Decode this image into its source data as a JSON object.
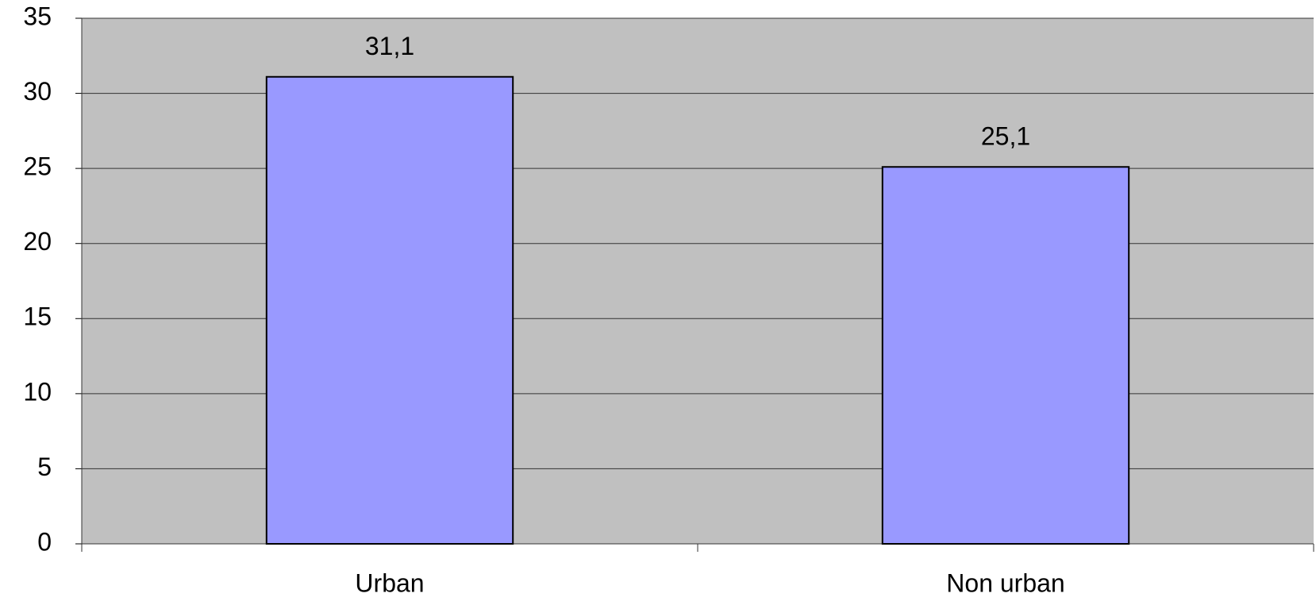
{
  "chart_data": {
    "type": "bar",
    "categories": [
      "Urban",
      "Non urban"
    ],
    "values": [
      31.1,
      25.1
    ],
    "value_labels": [
      "31,1",
      "25,1"
    ],
    "color": "#9999ff",
    "ylim": [
      0,
      35
    ],
    "yticks": [
      0,
      5,
      10,
      15,
      20,
      25,
      30,
      35
    ],
    "grid": true
  }
}
